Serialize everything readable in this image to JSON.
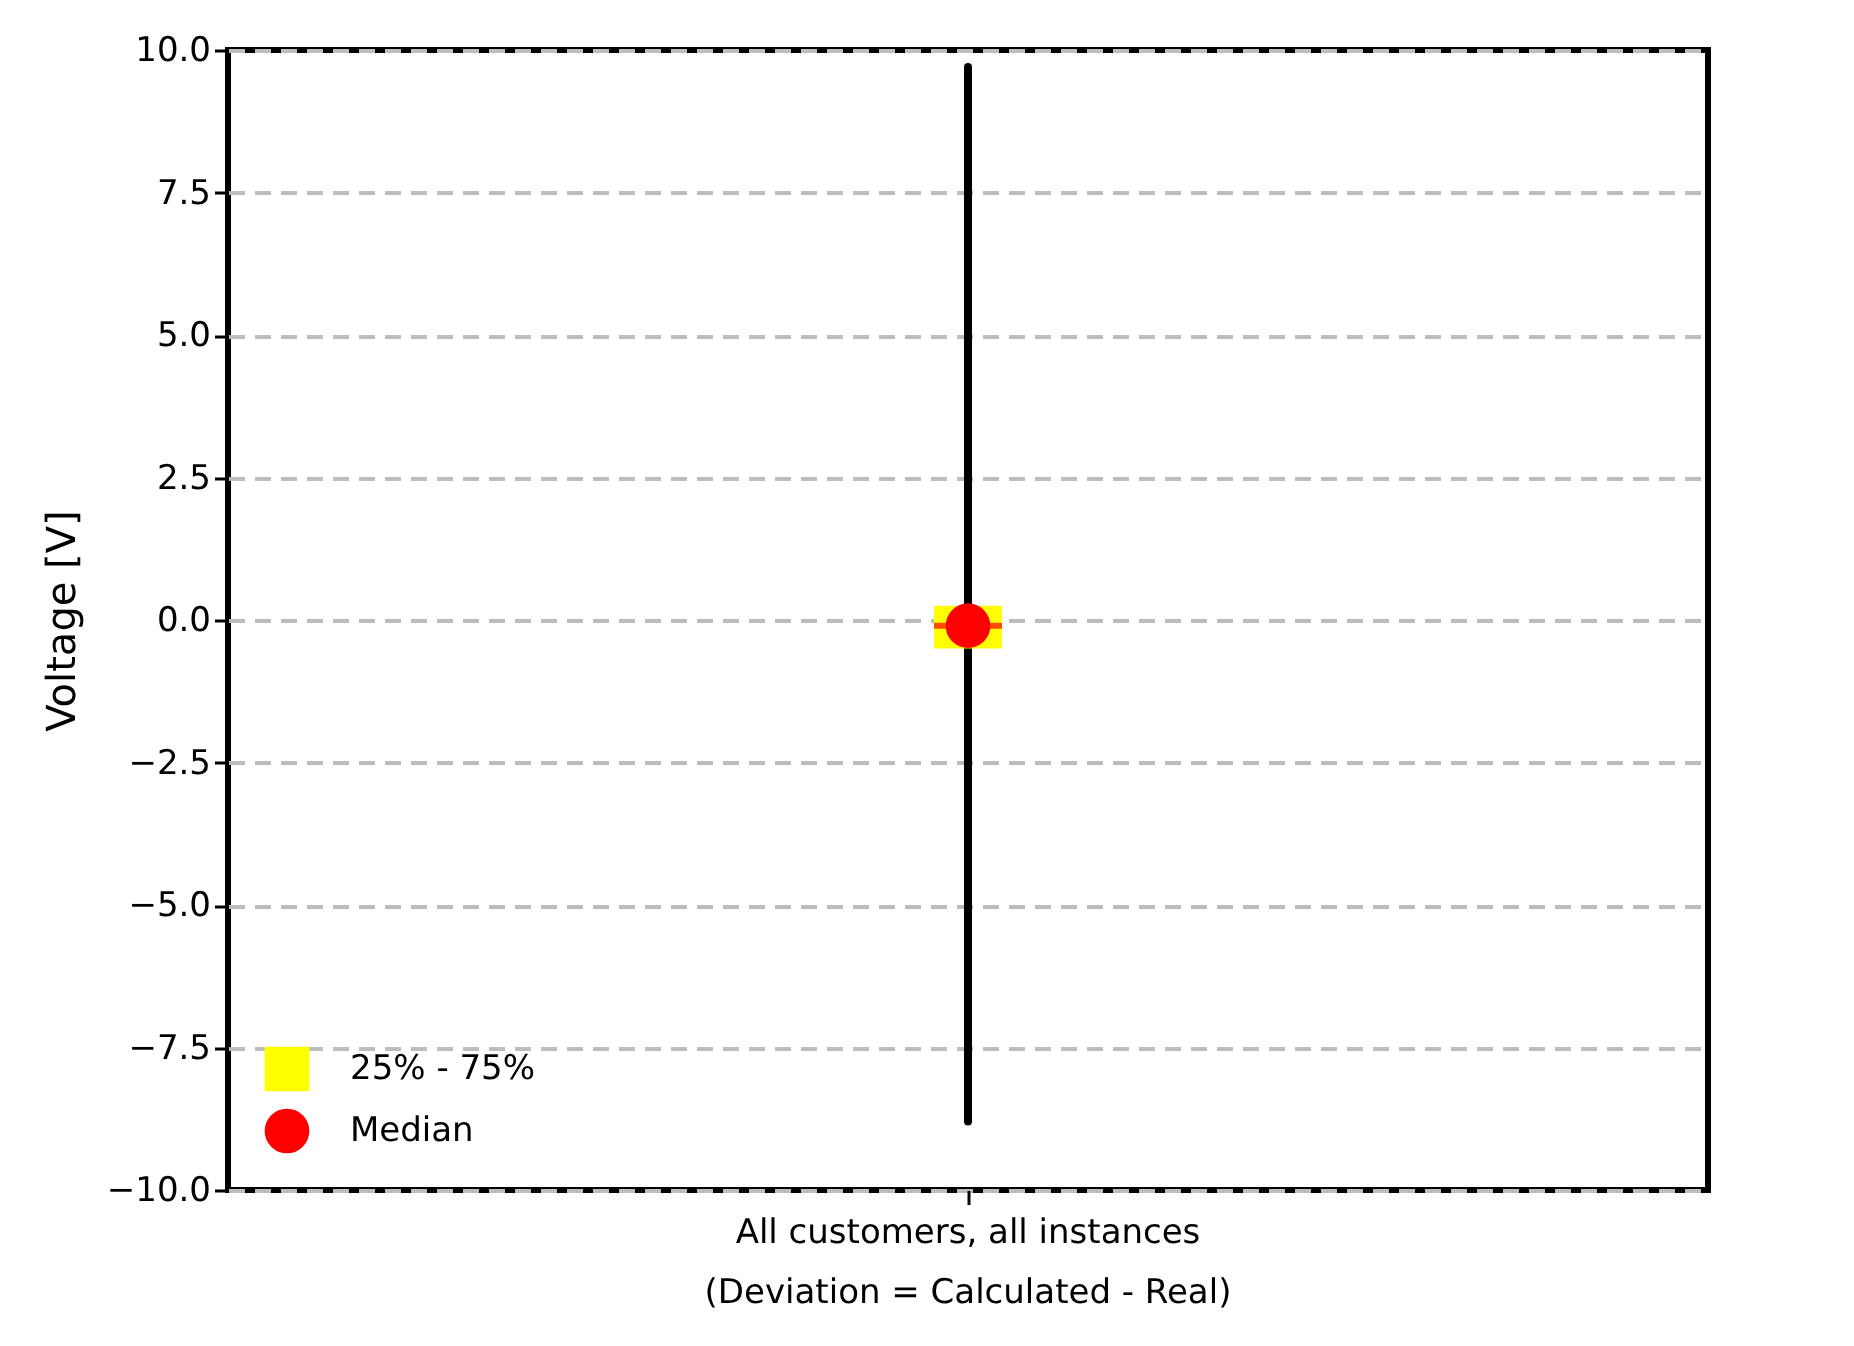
{
  "chart_data": {
    "type": "box",
    "ylabel": "Voltage [V]",
    "categories": [
      "All customers, all instances\n(Deviation = Calculated - Real)"
    ],
    "ylim": [
      -10,
      10
    ],
    "yticks": [
      {
        "value": -10,
        "label": "−10.0"
      },
      {
        "value": -7.5,
        "label": "−7.5"
      },
      {
        "value": -5,
        "label": "−5.0"
      },
      {
        "value": -2.5,
        "label": "−2.5"
      },
      {
        "value": 0,
        "label": "0.0"
      },
      {
        "value": 2.5,
        "label": "2.5"
      },
      {
        "value": 5,
        "label": "5.0"
      },
      {
        "value": 7.5,
        "label": "7.5"
      },
      {
        "value": 10,
        "label": "10.0"
      }
    ],
    "series": [
      {
        "name": "25% - 75%",
        "color": "#ffff00",
        "boxes": [
          {
            "low": -8.8,
            "q1": -0.5,
            "median": -0.1,
            "q3": 0.25,
            "high": 9.7
          }
        ]
      },
      {
        "name": "Median",
        "type": "scatter",
        "color": "#ff0000",
        "x": [
          "All customers, all instances\n(Deviation = Calculated - Real)"
        ],
        "values": [
          -0.1
        ]
      }
    ],
    "grid": "y",
    "legend": "bottom left"
  }
}
